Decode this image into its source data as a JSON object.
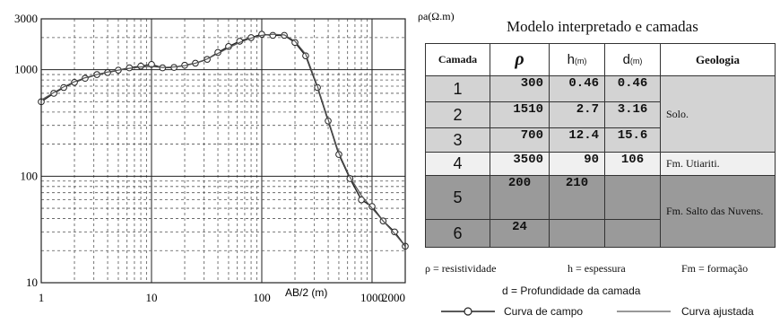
{
  "chart_data": {
    "type": "line",
    "xscale": "log",
    "yscale": "log",
    "xlim": [
      1,
      2000
    ],
    "ylim": [
      10,
      3000
    ],
    "xlabel": "AB/2 (m)",
    "ylabel": "ρa(Ω.m)",
    "x_tick_labels": [
      "1",
      "10",
      "100",
      "1000",
      "2000"
    ],
    "y_tick_labels": [
      "10",
      "100",
      "1000",
      "3000"
    ],
    "grid": true,
    "series": [
      {
        "name": "Curva de campo",
        "marker": "circle",
        "x": [
          1,
          1.3,
          1.6,
          2,
          2.5,
          3.2,
          4,
          5,
          6.3,
          8,
          10,
          12.6,
          16,
          20,
          25,
          32,
          40,
          50,
          63,
          80,
          100,
          126,
          160,
          200,
          250,
          320,
          400,
          500,
          630,
          800,
          1000,
          1260,
          1600,
          2000
        ],
        "y": [
          500,
          600,
          680,
          760,
          830,
          900,
          940,
          990,
          1040,
          1080,
          1120,
          1040,
          1050,
          1100,
          1150,
          1250,
          1450,
          1650,
          1850,
          2000,
          2150,
          2100,
          2100,
          1800,
          1350,
          680,
          330,
          160,
          95,
          60,
          52,
          38,
          30,
          22
        ]
      },
      {
        "name": "Curva ajustada",
        "marker": "none",
        "x": [
          1,
          1.3,
          1.6,
          2,
          2.5,
          3.2,
          4,
          5,
          6.3,
          8,
          10,
          12.6,
          16,
          20,
          25,
          32,
          40,
          50,
          63,
          80,
          100,
          126,
          160,
          200,
          250,
          320,
          400,
          500,
          630,
          800,
          1000,
          1260,
          1600,
          2000
        ],
        "y": [
          520,
          610,
          690,
          770,
          840,
          900,
          950,
          990,
          1030,
          1060,
          1070,
          1050,
          1060,
          1090,
          1150,
          1260,
          1420,
          1600,
          1800,
          1980,
          2100,
          2150,
          2120,
          1850,
          1400,
          700,
          340,
          165,
          98,
          66,
          50,
          38,
          29,
          22
        ]
      }
    ]
  },
  "table": {
    "title": "Modelo interpretado e camadas",
    "headers": {
      "camada": "Camada",
      "rho": "ρ",
      "h": "h",
      "h_unit": "(m)",
      "d": "d",
      "d_unit": "(m)",
      "geologia": "Geologia"
    },
    "rows": [
      {
        "camada": "1",
        "rho": "300",
        "h": "0.46",
        "d": "0.46"
      },
      {
        "camada": "2",
        "rho": "1510",
        "h": "2.7",
        "d": "3.16"
      },
      {
        "camada": "3",
        "rho": "700",
        "h": "12.4",
        "d": "15.6"
      },
      {
        "camada": "4",
        "rho": "3500",
        "h": "90",
        "d": "106"
      },
      {
        "camada": "5",
        "rho": "200",
        "h": "210",
        "d": ""
      },
      {
        "camada": "6",
        "rho": "24",
        "h": "",
        "d": ""
      }
    ],
    "geologia": {
      "solo": "Solo.",
      "utiariti": "Fm. Utiariti.",
      "salto": "Fm. Salto das Nuvens."
    },
    "colors": {
      "solo_bg": "#d3d3d3",
      "utiariti_bg": "#f0f0f0",
      "salto_bg": "#9a9a9a"
    }
  },
  "legend": {
    "rho_def": "ρ = resistividade",
    "h_def": "h = espessura",
    "fm_def": "Fm = formação",
    "d_def": "d = Profundidade da camada",
    "campo": "Curva de campo",
    "ajustada": "Curva ajustada"
  }
}
